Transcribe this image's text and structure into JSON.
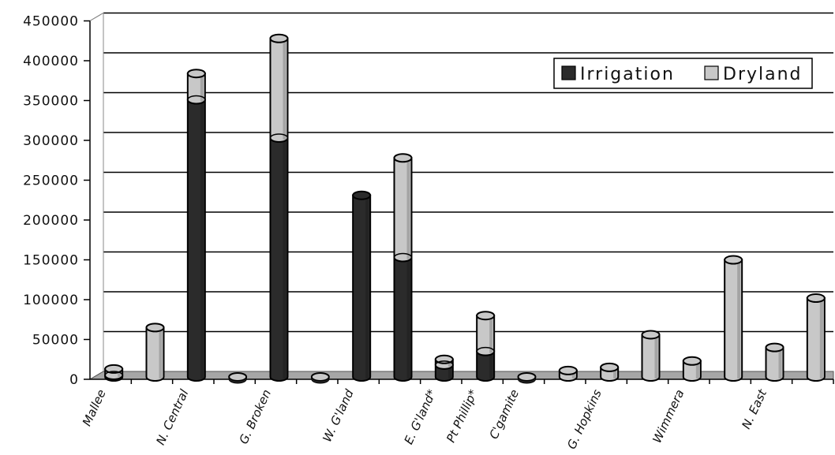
{
  "chart_data": {
    "type": "bar",
    "stacked": true,
    "style": "3d-cylinder",
    "title": "",
    "xlabel": "",
    "ylabel": "",
    "ylim": [
      0,
      450000
    ],
    "yticks": [
      "0",
      "50000",
      "100000",
      "150000",
      "200000",
      "250000",
      "300000",
      "350000",
      "400000",
      "450000"
    ],
    "grid": true,
    "legend_position": "top-right",
    "categories": [
      "Mallee",
      "",
      "N. Central",
      "",
      "G. Broken",
      "",
      "W. G'land",
      "",
      "E. G'land*",
      "Pt Phillip*",
      "C'gamite",
      "",
      "G. Hopkins",
      "",
      "Wimmera",
      "",
      "N. East",
      ""
    ],
    "series": [
      {
        "name": "Irrigation",
        "color": "#2b2b2b",
        "values": [
          2000,
          0,
          348000,
          0,
          300000,
          0,
          228000,
          150000,
          15000,
          32000,
          0,
          0,
          0,
          0,
          0,
          0,
          0,
          0
        ]
      },
      {
        "name": "Dryland",
        "color": "#c8c8c8",
        "values": [
          8000,
          62000,
          33000,
          0,
          125000,
          0,
          0,
          125000,
          7000,
          45000,
          3000,
          8000,
          12000,
          53000,
          20000,
          147000,
          37000,
          99000
        ]
      }
    ]
  }
}
